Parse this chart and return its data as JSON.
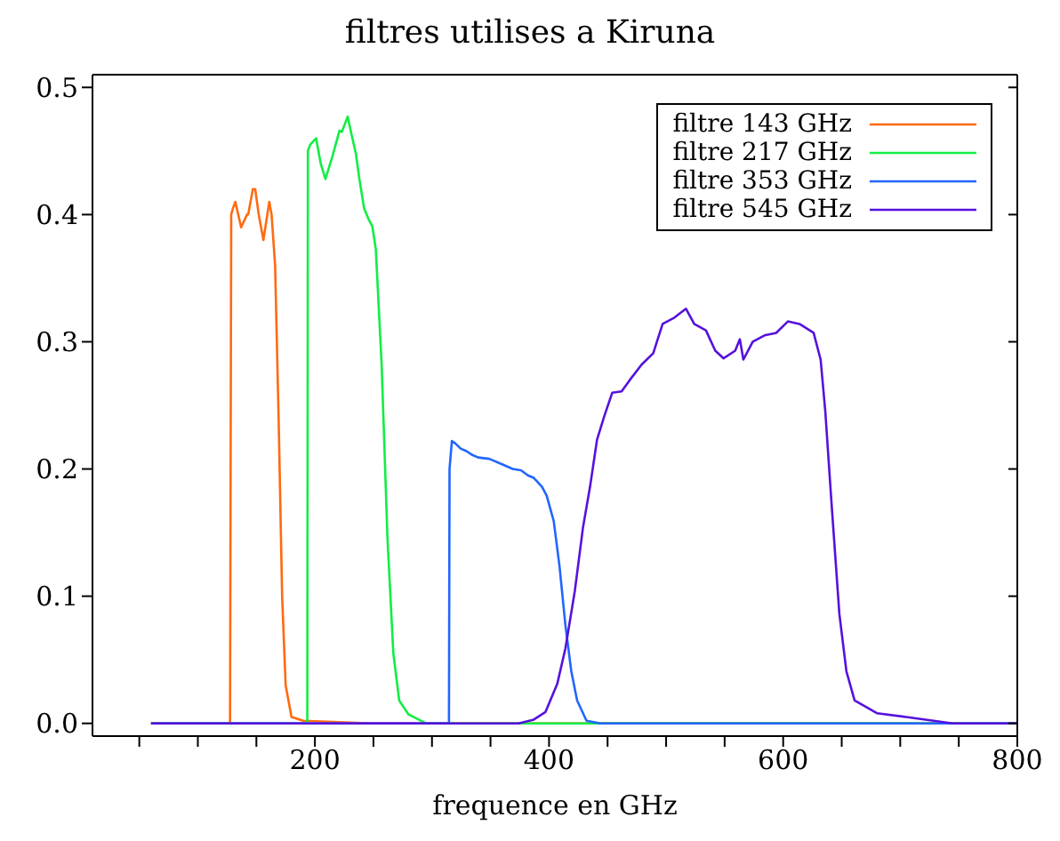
{
  "chart_data": {
    "type": "line",
    "title": "filtres utilises a Kiruna",
    "xlabel": "frequence en GHz",
    "xlim": [
      10,
      800
    ],
    "ylim": [
      -0.01,
      0.51
    ],
    "xticks": [
      {
        "value": 50,
        "label": null
      },
      {
        "value": 100,
        "label": null
      },
      {
        "value": 150,
        "label": null
      },
      200,
      {
        "value": 250,
        "label": null
      },
      {
        "value": 300,
        "label": null
      },
      {
        "value": 350,
        "label": null
      },
      400,
      {
        "value": 450,
        "label": null
      },
      {
        "value": 500,
        "label": null
      },
      {
        "value": 550,
        "label": null
      },
      600,
      {
        "value": 650,
        "label": null
      },
      {
        "value": 700,
        "label": null
      },
      {
        "value": 750,
        "label": null
      },
      800
    ],
    "yticks": [
      {
        "value": 0,
        "label": "0.0"
      },
      {
        "value": 0.1,
        "label": "0.1"
      },
      {
        "value": 0.2,
        "label": "0.2"
      },
      {
        "value": 0.3,
        "label": "0.3"
      },
      {
        "value": 0.4,
        "label": "0.4"
      },
      {
        "value": 0.5,
        "label": "0.5"
      }
    ],
    "legend": "top right",
    "marker": "none",
    "line_style": "solid",
    "series": [
      {
        "name": "filtre 143 GHz",
        "color": "#ff6a10",
        "x": [
          60,
          127.5,
          128.5,
          130,
          132,
          137,
          142,
          143,
          147,
          149,
          152,
          156,
          161,
          163,
          166,
          169,
          172,
          175,
          180,
          190,
          250,
          800
        ],
        "values": [
          0,
          0,
          0.4,
          0.405,
          0.41,
          0.39,
          0.4,
          0.4,
          0.42,
          0.42,
          0.4,
          0.38,
          0.41,
          0.4,
          0.36,
          0.24,
          0.1,
          0.03,
          0.005,
          0.002,
          0,
          0
        ]
      },
      {
        "name": "filtre 217 GHz",
        "color": "#11ee44",
        "x": [
          60,
          193.5,
          194,
          196,
          201,
          205,
          209,
          215,
          221,
          223,
          228,
          231,
          235,
          238,
          242,
          246,
          249,
          252,
          257,
          262,
          267,
          272,
          280,
          295,
          800
        ],
        "values": [
          0,
          0,
          0.45,
          0.455,
          0.46,
          0.44,
          0.428,
          0.446,
          0.466,
          0.465,
          0.477,
          0.464,
          0.448,
          0.428,
          0.405,
          0.396,
          0.391,
          0.373,
          0.282,
          0.145,
          0.055,
          0.018,
          0.007,
          0,
          0
        ]
      },
      {
        "name": "filtre 353 GHz",
        "color": "#2266ff",
        "x": [
          60,
          314.5,
          315,
          317,
          320,
          324.5,
          329.5,
          334.5,
          339.5,
          349,
          359,
          369,
          376,
          382,
          387,
          394,
          398,
          404,
          409,
          414,
          419,
          424,
          432,
          444,
          800
        ],
        "values": [
          0,
          0,
          0.2,
          0.222,
          0.22,
          0.216,
          0.214,
          0.211,
          0.209,
          0.208,
          0.204,
          0.2,
          0.199,
          0.195,
          0.193,
          0.186,
          0.179,
          0.159,
          0.123,
          0.077,
          0.041,
          0.018,
          0.002,
          0,
          0
        ]
      },
      {
        "name": "filtre 545 GHz",
        "color": "#5511dd",
        "x": [
          60,
          374,
          387,
          397,
          407,
          414,
          422,
          429,
          435,
          441,
          447,
          454,
          462,
          469,
          479,
          489,
          497,
          507,
          517,
          524,
          534,
          542,
          549,
          559,
          563,
          566,
          574,
          584,
          594,
          604,
          614,
          626,
          632,
          636,
          641,
          648,
          654,
          661,
          680,
          705,
          745,
          800
        ],
        "values": [
          0,
          0,
          0.003,
          0.009,
          0.031,
          0.059,
          0.104,
          0.154,
          0.186,
          0.223,
          0.241,
          0.26,
          0.261,
          0.27,
          0.282,
          0.291,
          0.314,
          0.319,
          0.326,
          0.314,
          0.309,
          0.293,
          0.287,
          0.293,
          0.302,
          0.286,
          0.3,
          0.305,
          0.307,
          0.316,
          0.314,
          0.307,
          0.286,
          0.245,
          0.177,
          0.086,
          0.041,
          0.018,
          0.008,
          0.005,
          0,
          0
        ]
      }
    ]
  }
}
